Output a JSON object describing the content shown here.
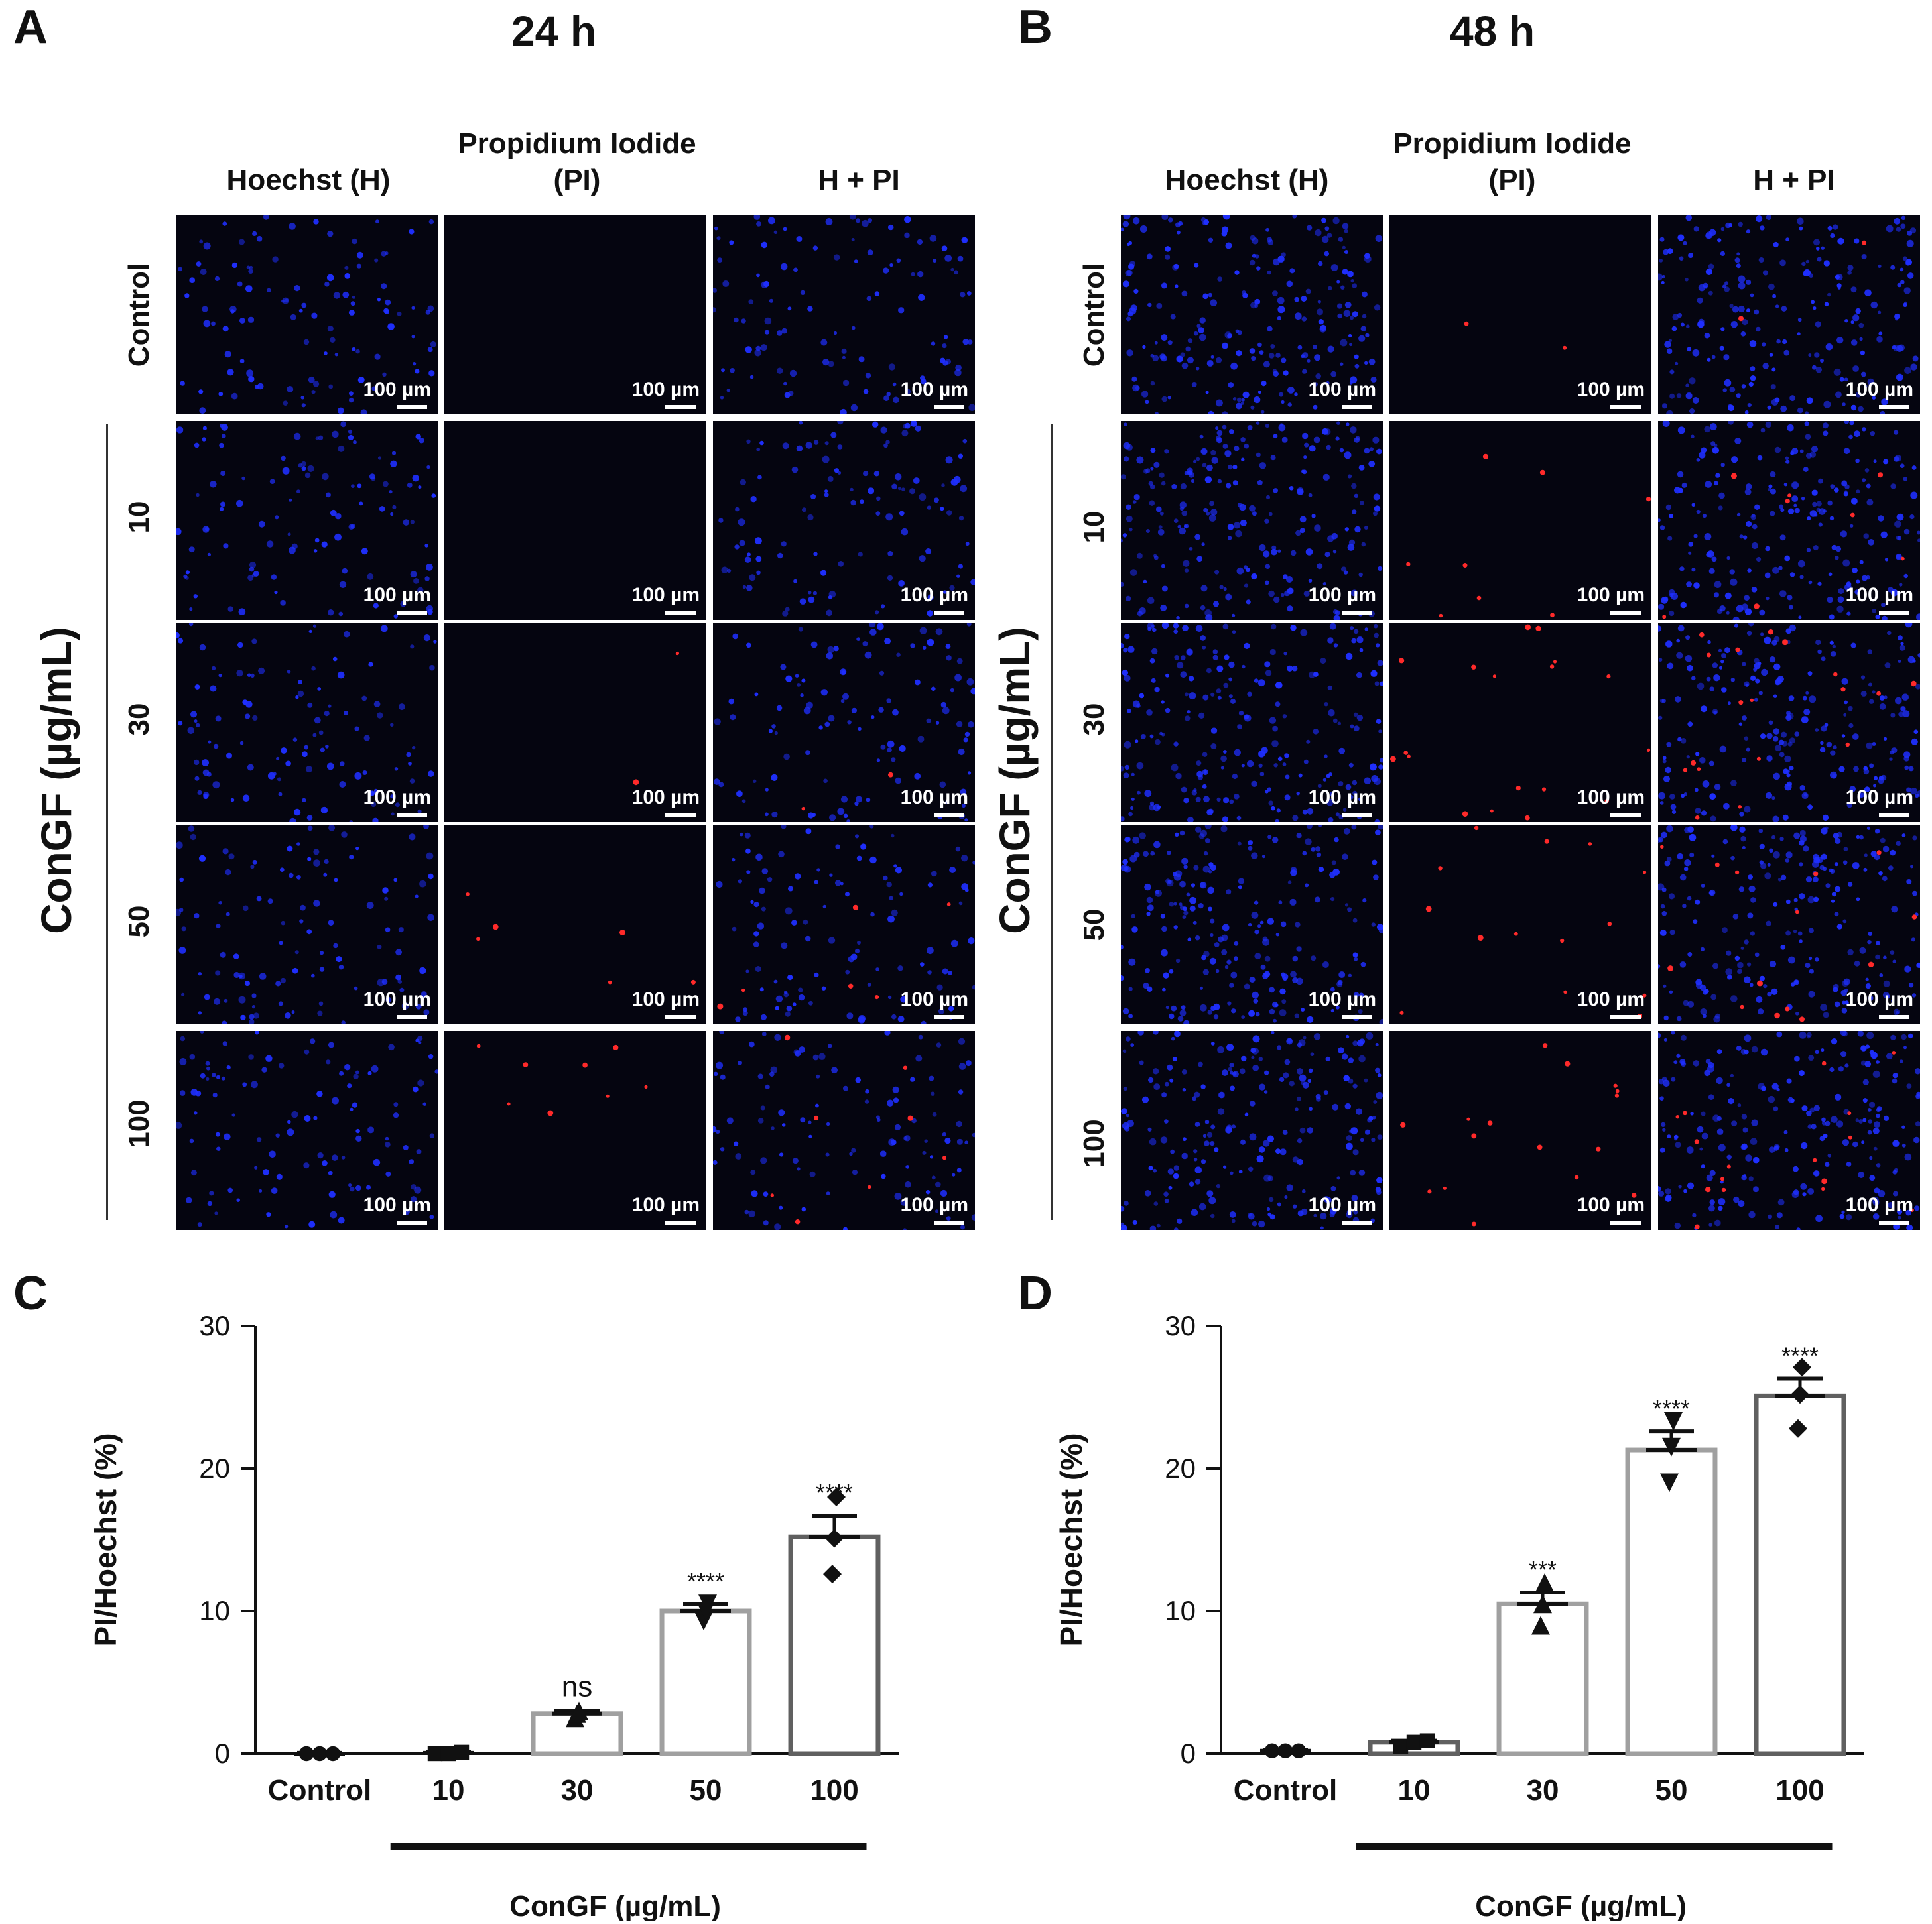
{
  "panels": {
    "A": {
      "letter": "A",
      "title": "24 h"
    },
    "B": {
      "letter": "B",
      "title": "48 h"
    },
    "C": {
      "letter": "C"
    },
    "D": {
      "letter": "D"
    }
  },
  "columns": {
    "hoechst": "Hoechst (H)",
    "pi_line1": "Propidium Iodide",
    "pi_line2": "(PI)",
    "merge": "H + PI"
  },
  "rows": [
    "Control",
    "10",
    "30",
    "50",
    "100"
  ],
  "concentration_label": "ConGF (µg/mL)",
  "scale_bar_label": "100 µm",
  "colors": {
    "nuclei_blue": "#1f2fff",
    "dead_red": "#ff2a2a",
    "bar_light": "#a0a0a0",
    "bar_dark": "#606060"
  },
  "chart_data": [
    {
      "panel": "C",
      "type": "bar",
      "title": "",
      "xlabel": "ConGF (µg/mL)",
      "ylabel": "PI/Hoechst (%)",
      "ylim": [
        0,
        30
      ],
      "yticks": [
        0,
        10,
        20,
        30
      ],
      "categories": [
        "Control",
        "10",
        "30",
        "50",
        "100"
      ],
      "values": [
        0.0,
        0.05,
        2.8,
        10.0,
        15.2
      ],
      "errors": [
        0.05,
        0.05,
        0.2,
        0.5,
        1.5
      ],
      "points": [
        [
          0,
          0,
          0
        ],
        [
          0,
          0,
          0.1
        ],
        [
          2.5,
          2.8,
          3.0
        ],
        [
          9.3,
          10.0,
          10.5
        ],
        [
          12.6,
          15.1,
          18.0
        ]
      ],
      "markers": [
        "circle",
        "square",
        "triangle-up",
        "triangle-down",
        "diamond"
      ],
      "significance": [
        "",
        "",
        "ns",
        "****",
        "****"
      ]
    },
    {
      "panel": "D",
      "type": "bar",
      "title": "",
      "xlabel": "ConGF (µg/mL)",
      "ylabel": "PI/Hoechst (%)",
      "ylim": [
        0,
        30
      ],
      "yticks": [
        0,
        10,
        20,
        30
      ],
      "categories": [
        "Control",
        "10",
        "30",
        "50",
        "100"
      ],
      "values": [
        0.2,
        0.8,
        10.5,
        21.3,
        25.1
      ],
      "errors": [
        0.05,
        0.1,
        0.8,
        1.3,
        1.2
      ],
      "points": [
        [
          0.2,
          0.2,
          0.2
        ],
        [
          0.5,
          0.8,
          0.9
        ],
        [
          9.0,
          10.5,
          12.0
        ],
        [
          19.0,
          21.5,
          23.3
        ],
        [
          22.8,
          25.2,
          27.1
        ]
      ],
      "markers": [
        "circle",
        "square",
        "triangle-up",
        "triangle-down",
        "diamond"
      ],
      "significance": [
        "",
        "",
        "***",
        "****",
        "****"
      ]
    }
  ]
}
